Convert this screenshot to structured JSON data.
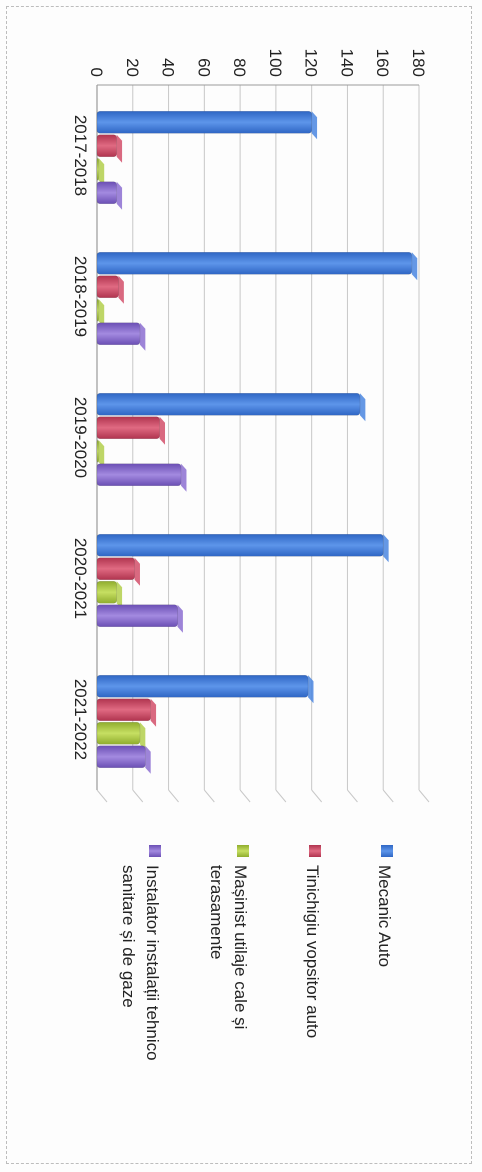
{
  "chart_data": {
    "type": "bar",
    "orientation": "horizontal",
    "rotated": "90deg-clockwise",
    "categories": [
      "2017-2018",
      "2018-2019",
      "2019-2020",
      "2020-2021",
      "2021-2022"
    ],
    "series": [
      {
        "name": "Mecanic Auto",
        "color": "#4a86e0",
        "values": [
          120,
          176,
          147,
          160,
          118
        ]
      },
      {
        "name": "Tinichigiu vopsitor auto",
        "color": "#d24f6a",
        "values": [
          11,
          12,
          35,
          21,
          30
        ]
      },
      {
        "name": "Mașinist utilaje cale și terasamente",
        "color": "#b3cf4c",
        "values": [
          1,
          1,
          1,
          11,
          24
        ]
      },
      {
        "name": "Instalator instalații tehnico sanitare și de gaze",
        "color": "#8c6fd1",
        "values": [
          11,
          24,
          47,
          45,
          27
        ]
      }
    ],
    "ticks": [
      "0",
      "20",
      "40",
      "60",
      "80",
      "100",
      "120",
      "140",
      "160",
      "180"
    ],
    "ylim": [
      0,
      180
    ],
    "grid": true,
    "legend_position": "right",
    "title": "",
    "xlabel": "",
    "ylabel": ""
  },
  "legend": {
    "items": [
      {
        "lines": [
          "Mecanic Auto"
        ]
      },
      {
        "lines": [
          "Tinichigiu vopsitor auto"
        ]
      },
      {
        "lines": [
          "Mașinist utilaje cale și",
          "terasamente"
        ]
      },
      {
        "lines": [
          "Instalator instalații tehnico",
          "sanitare și de gaze"
        ]
      }
    ]
  }
}
